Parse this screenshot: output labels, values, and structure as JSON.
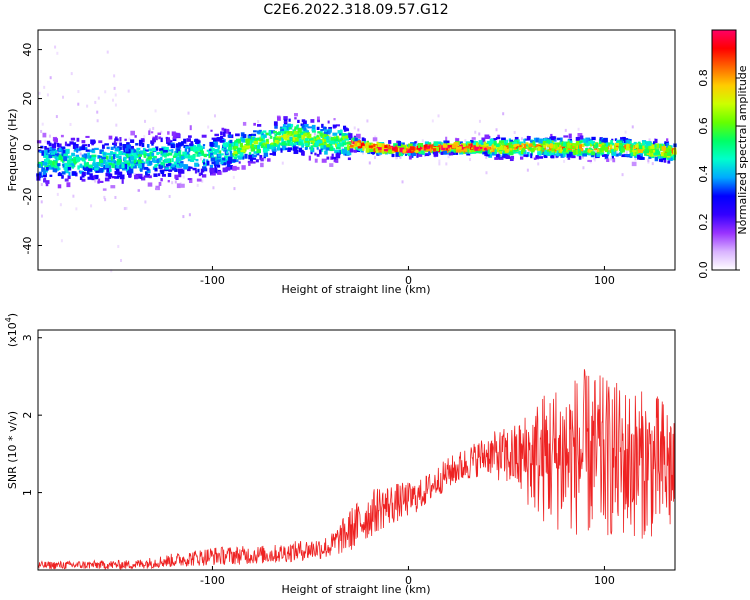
{
  "figure": {
    "title": "C2E6.2022.318.09.57.G12"
  },
  "chart_data": [
    {
      "type": "heatmap",
      "name": "spectrogram",
      "xlabel": "Height of straight line (km)",
      "ylabel": "Frequency (Hz)",
      "xlim": [
        -189,
        136
      ],
      "ylim": [
        -50,
        48
      ],
      "xticks": [
        -100,
        0,
        100
      ],
      "yticks": [
        -40,
        -20,
        0,
        20,
        40
      ],
      "colorbar": {
        "label": "Normalized spectral amplitude",
        "range": [
          0,
          1
        ],
        "ticks": [
          0.0,
          0.2,
          0.4,
          0.6,
          0.8
        ],
        "colormap": [
          "#ffffff",
          "#d9b3ff",
          "#9933ff",
          "#3300ff",
          "#0000ff",
          "#00aaff",
          "#00ffcc",
          "#00ff66",
          "#66ff00",
          "#ccff00",
          "#ffcc00",
          "#ff6600",
          "#ff0000",
          "#ff0066"
        ]
      },
      "ridge_frequency_hz": [
        {
          "x": -189,
          "y": -6
        },
        {
          "x": -150,
          "y": -5
        },
        {
          "x": -120,
          "y": -4
        },
        {
          "x": -95,
          "y": -2
        },
        {
          "x": -75,
          "y": 2
        },
        {
          "x": -60,
          "y": 5
        },
        {
          "x": -45,
          "y": 3
        },
        {
          "x": -30,
          "y": 2
        },
        {
          "x": -20,
          "y": 0
        },
        {
          "x": 0,
          "y": -1
        },
        {
          "x": 10,
          "y": 0
        },
        {
          "x": 40,
          "y": 0
        },
        {
          "x": 80,
          "y": 0
        },
        {
          "x": 110,
          "y": 0
        },
        {
          "x": 136,
          "y": -2
        }
      ]
    },
    {
      "type": "line",
      "name": "snr",
      "xlabel": "Height of straight line (km)",
      "ylabel": "SNR (10 * v/v)",
      "yunit": "(x10",
      "yunit_exp": "4",
      "yunit_close": ")",
      "xlim": [
        -189,
        136
      ],
      "ylim": [
        0,
        3.1
      ],
      "xticks": [
        -100,
        0,
        100
      ],
      "yticks": [
        1,
        2,
        3
      ],
      "color": "#ee2222",
      "envelope": [
        {
          "x": -189,
          "mean": 0.06,
          "amp": 0.05
        },
        {
          "x": -140,
          "mean": 0.07,
          "amp": 0.06
        },
        {
          "x": -100,
          "mean": 0.18,
          "amp": 0.12
        },
        {
          "x": -70,
          "mean": 0.2,
          "amp": 0.12
        },
        {
          "x": -40,
          "mean": 0.3,
          "amp": 0.15
        },
        {
          "x": -28,
          "mean": 0.55,
          "amp": 0.3
        },
        {
          "x": -15,
          "mean": 0.8,
          "amp": 0.3
        },
        {
          "x": 5,
          "mean": 0.95,
          "amp": 0.2
        },
        {
          "x": 20,
          "mean": 1.25,
          "amp": 0.2
        },
        {
          "x": 40,
          "mean": 1.5,
          "amp": 0.25
        },
        {
          "x": 55,
          "mean": 1.45,
          "amp": 0.45
        },
        {
          "x": 70,
          "mean": 1.45,
          "amp": 0.9
        },
        {
          "x": 90,
          "mean": 1.5,
          "amp": 1.1
        },
        {
          "x": 110,
          "mean": 1.4,
          "amp": 1.0
        },
        {
          "x": 136,
          "mean": 1.3,
          "amp": 0.9
        }
      ]
    }
  ]
}
